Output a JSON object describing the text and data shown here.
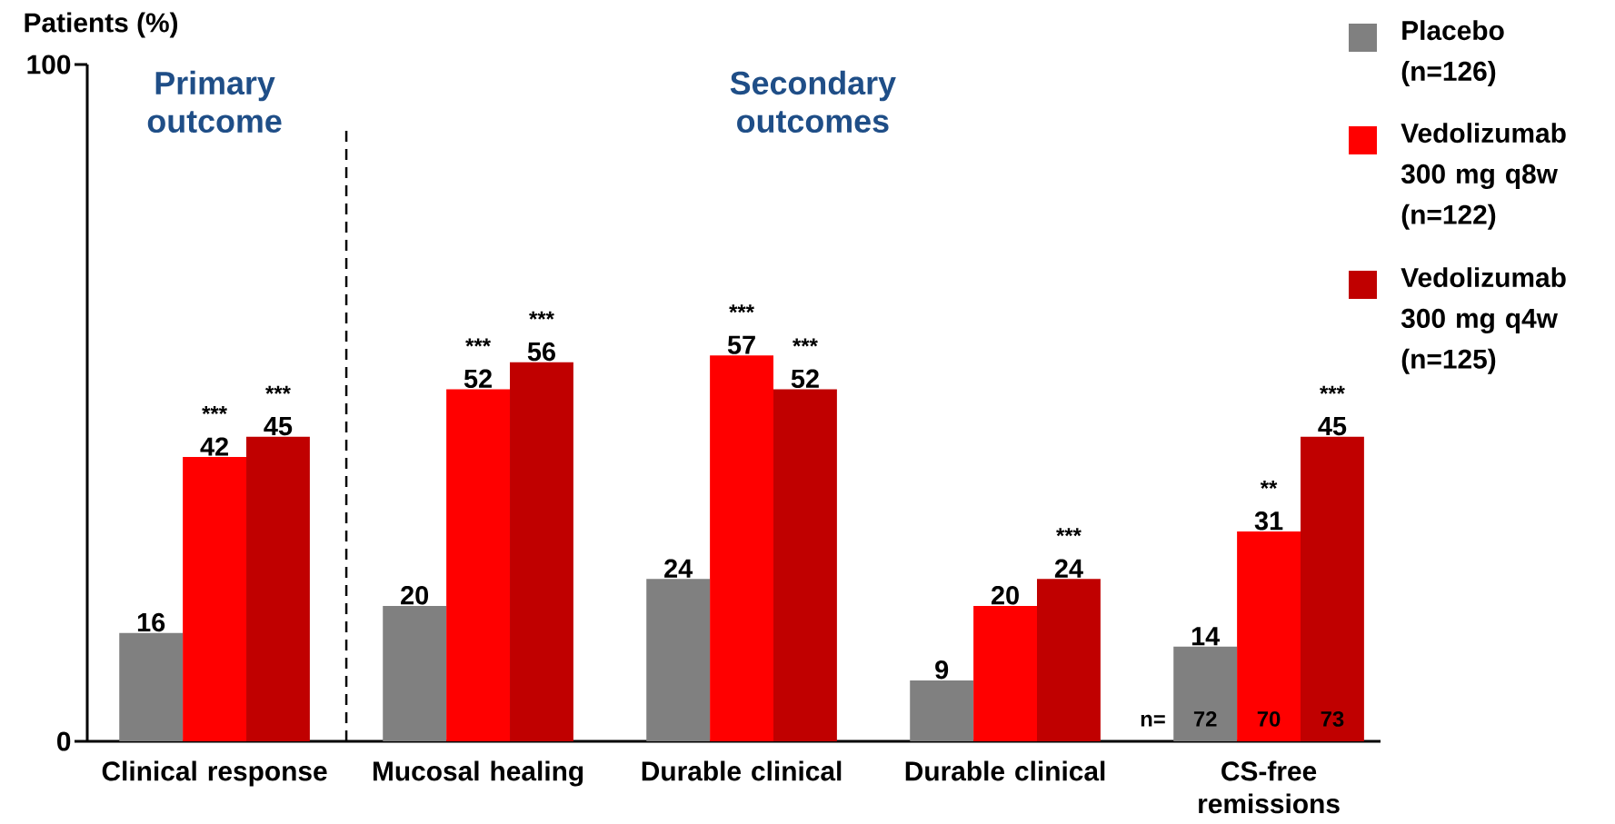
{
  "chart_data": {
    "type": "bar",
    "ylabel": "Patients (%)",
    "categories": [
      "Clinical response",
      "Mucosal healing",
      "Durable clinical",
      "Durable clinical",
      "CS-free remissions"
    ],
    "series": [
      {
        "name": "Placebo (n=126)",
        "color": "#808080",
        "values": [
          16,
          20,
          24,
          9,
          14
        ]
      },
      {
        "name": "Vedolizumab 300 mg q8w (n=122)",
        "color": "#ff0000",
        "values": [
          42,
          52,
          57,
          20,
          31
        ]
      },
      {
        "name": "Vedolizumab 300 mg q4w (n=125)",
        "color": "#c00000",
        "values": [
          45,
          56,
          52,
          24,
          45
        ]
      }
    ],
    "ylim": [
      0,
      100
    ],
    "yticks": [
      0,
      100
    ],
    "data_labels": true,
    "legend": "top right",
    "annotations": [
      "Primary outcome",
      "Secondary outcomes",
      "n=",
      "72",
      "70",
      "73",
      "***",
      "***",
      "***",
      "***",
      "***",
      "***",
      "***",
      "**",
      "***"
    ]
  }
}
